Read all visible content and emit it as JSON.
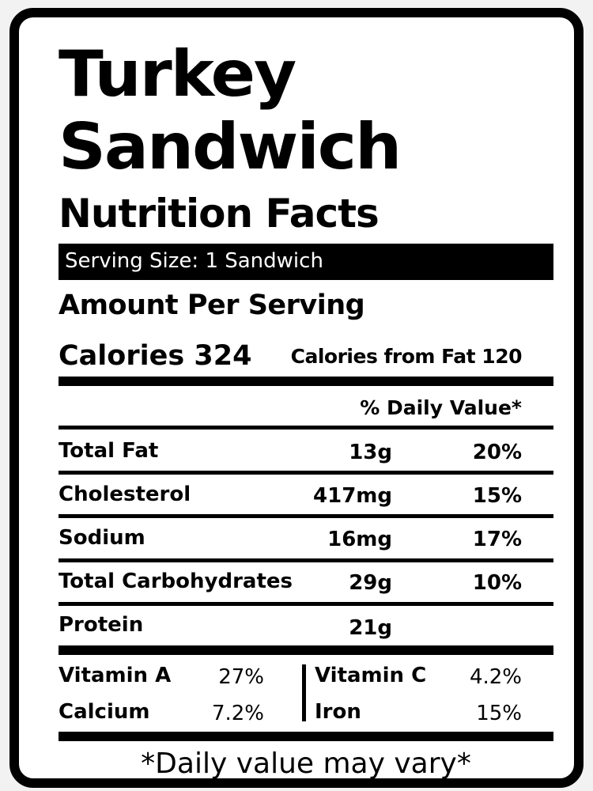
{
  "title_line1": "Turkey",
  "title_line2": "Sandwich",
  "subtitle": "Nutrition Facts",
  "serving_size": "Serving Size: 1 Sandwich",
  "amount_per_serving": "Amount Per Serving",
  "calories": "Calories 324",
  "calories_from_fat": "Calories from Fat 120",
  "daily_value_header": "% Daily Value*",
  "nutrients": [
    {
      "label": "Total Fat",
      "amount": "13g",
      "percent": "20%"
    },
    {
      "label": "Cholesterol",
      "amount": "417mg",
      "percent": "15%"
    },
    {
      "label": "Sodium",
      "amount": "16mg",
      "percent": "17%"
    },
    {
      "label": "Total Carbohydrates",
      "amount": "29g",
      "percent": "10%"
    },
    {
      "label": "Protein",
      "amount": "21g",
      "percent": ""
    }
  ],
  "vitamins": [
    {
      "label": "Vitamin A",
      "value": "27%"
    },
    {
      "label": "Calcium",
      "value": "7.2%"
    },
    {
      "label": "Vitamin C",
      "value": "4.2%"
    },
    {
      "label": "Iron",
      "value": "15%"
    }
  ],
  "footer": "*Daily value may vary*"
}
